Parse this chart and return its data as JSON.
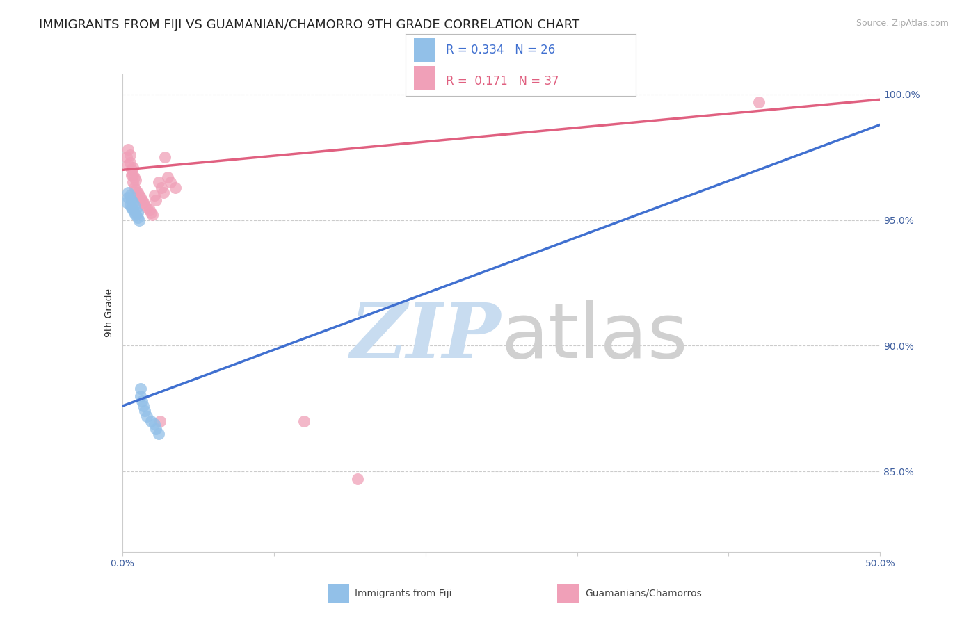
{
  "title": "IMMIGRANTS FROM FIJI VS GUAMANIAN/CHAMORRO 9TH GRADE CORRELATION CHART",
  "source_text": "Source: ZipAtlas.com",
  "ylabel": "9th Grade",
  "xlim": [
    0.0,
    0.5
  ],
  "ylim": [
    0.818,
    1.008
  ],
  "yticks": [
    0.85,
    0.9,
    0.95,
    1.0
  ],
  "ytick_labels": [
    "85.0%",
    "90.0%",
    "95.0%",
    "100.0%"
  ],
  "xticks": [
    0.0,
    0.1,
    0.2,
    0.3,
    0.4,
    0.5
  ],
  "xtick_labels": [
    "0.0%",
    "",
    "",
    "",
    "",
    "50.0%"
  ],
  "blue_color": "#92C0E8",
  "pink_color": "#F0A0B8",
  "blue_line_color": "#4070D0",
  "pink_line_color": "#E06080",
  "legend_R_blue": "0.334",
  "legend_N_blue": "26",
  "legend_R_pink": "0.171",
  "legend_N_pink": "37",
  "legend_label_blue": "Immigrants from Fiji",
  "legend_label_pink": "Guamanians/Chamorros",
  "blue_scatter_x": [
    0.003,
    0.004,
    0.004,
    0.005,
    0.005,
    0.006,
    0.006,
    0.007,
    0.007,
    0.008,
    0.008,
    0.009,
    0.009,
    0.01,
    0.01,
    0.011,
    0.012,
    0.012,
    0.013,
    0.014,
    0.015,
    0.016,
    0.019,
    0.021,
    0.022,
    0.024
  ],
  "blue_scatter_y": [
    0.957,
    0.959,
    0.961,
    0.956,
    0.96,
    0.955,
    0.958,
    0.954,
    0.957,
    0.953,
    0.956,
    0.952,
    0.954,
    0.951,
    0.953,
    0.95,
    0.88,
    0.883,
    0.878,
    0.876,
    0.874,
    0.872,
    0.87,
    0.869,
    0.867,
    0.865
  ],
  "pink_scatter_x": [
    0.003,
    0.004,
    0.004,
    0.005,
    0.005,
    0.006,
    0.006,
    0.007,
    0.007,
    0.007,
    0.008,
    0.008,
    0.009,
    0.009,
    0.01,
    0.011,
    0.012,
    0.013,
    0.014,
    0.015,
    0.016,
    0.018,
    0.019,
    0.02,
    0.021,
    0.022,
    0.024,
    0.025,
    0.026,
    0.027,
    0.028,
    0.03,
    0.032,
    0.035,
    0.12,
    0.155,
    0.42
  ],
  "pink_scatter_y": [
    0.975,
    0.978,
    0.972,
    0.973,
    0.976,
    0.97,
    0.968,
    0.968,
    0.971,
    0.965,
    0.967,
    0.963,
    0.966,
    0.962,
    0.961,
    0.96,
    0.959,
    0.958,
    0.957,
    0.956,
    0.955,
    0.954,
    0.953,
    0.952,
    0.96,
    0.958,
    0.965,
    0.87,
    0.963,
    0.961,
    0.975,
    0.967,
    0.965,
    0.963,
    0.87,
    0.847,
    0.997
  ],
  "blue_trend_x": [
    0.0,
    0.5
  ],
  "blue_trend_y": [
    0.876,
    0.988
  ],
  "pink_trend_x": [
    0.0,
    0.5
  ],
  "pink_trend_y": [
    0.97,
    0.998
  ],
  "title_fontsize": 13,
  "axis_label_fontsize": 10,
  "tick_fontsize": 10,
  "background_color": "#FFFFFF",
  "grid_color": "#CCCCCC"
}
